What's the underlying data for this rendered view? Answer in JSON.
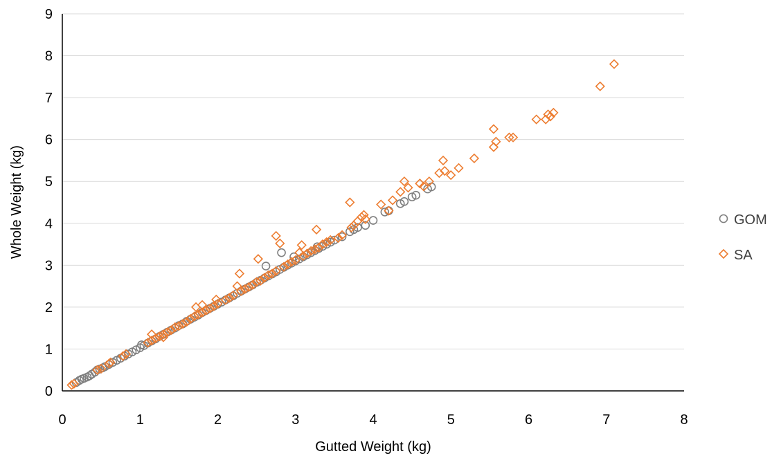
{
  "chart_data": {
    "type": "scatter",
    "title": "",
    "xlabel": "Gutted Weight (kg)",
    "ylabel": "Whole Weight (kg)",
    "xlim": [
      0,
      8
    ],
    "ylim": [
      0,
      9
    ],
    "xticks": [
      "0",
      "1",
      "2",
      "3",
      "4",
      "5",
      "6",
      "7",
      "8"
    ],
    "yticks": [
      "0",
      "1",
      "2",
      "3",
      "4",
      "5",
      "6",
      "7",
      "8",
      "9"
    ],
    "grid": "horizontal",
    "legend": "right",
    "series": [
      {
        "name": "GOM",
        "marker": "circle",
        "color": "#7f7f7f",
        "points": [
          [
            0.18,
            0.2
          ],
          [
            0.22,
            0.25
          ],
          [
            0.25,
            0.28
          ],
          [
            0.28,
            0.3
          ],
          [
            0.32,
            0.33
          ],
          [
            0.35,
            0.36
          ],
          [
            0.38,
            0.4
          ],
          [
            0.42,
            0.45
          ],
          [
            0.45,
            0.5
          ],
          [
            0.48,
            0.52
          ],
          [
            0.52,
            0.55
          ],
          [
            0.55,
            0.58
          ],
          [
            0.6,
            0.63
          ],
          [
            0.65,
            0.68
          ],
          [
            0.7,
            0.73
          ],
          [
            0.75,
            0.78
          ],
          [
            0.8,
            0.83
          ],
          [
            0.85,
            0.88
          ],
          [
            0.9,
            0.93
          ],
          [
            0.95,
            0.98
          ],
          [
            1.0,
            1.03
          ],
          [
            1.02,
            1.1
          ],
          [
            1.05,
            1.08
          ],
          [
            1.1,
            1.14
          ],
          [
            1.15,
            1.19
          ],
          [
            1.2,
            1.24
          ],
          [
            1.25,
            1.3
          ],
          [
            1.3,
            1.35
          ],
          [
            1.35,
            1.4
          ],
          [
            1.4,
            1.45
          ],
          [
            1.45,
            1.5
          ],
          [
            1.5,
            1.56
          ],
          [
            1.55,
            1.6
          ],
          [
            1.6,
            1.66
          ],
          [
            1.65,
            1.71
          ],
          [
            1.7,
            1.76
          ],
          [
            1.75,
            1.81
          ],
          [
            1.8,
            1.87
          ],
          [
            1.85,
            1.92
          ],
          [
            1.9,
            1.97
          ],
          [
            1.95,
            2.02
          ],
          [
            2.0,
            2.07
          ],
          [
            2.05,
            2.12
          ],
          [
            2.1,
            2.17
          ],
          [
            2.15,
            2.22
          ],
          [
            2.2,
            2.27
          ],
          [
            2.25,
            2.33
          ],
          [
            2.3,
            2.38
          ],
          [
            2.35,
            2.43
          ],
          [
            2.4,
            2.48
          ],
          [
            2.45,
            2.53
          ],
          [
            2.5,
            2.59
          ],
          [
            2.55,
            2.64
          ],
          [
            2.6,
            2.69
          ],
          [
            2.65,
            2.74
          ],
          [
            2.7,
            2.79
          ],
          [
            2.75,
            2.84
          ],
          [
            2.8,
            2.9
          ],
          [
            2.85,
            2.95
          ],
          [
            2.9,
            3.0
          ],
          [
            2.95,
            3.05
          ],
          [
            3.0,
            3.1
          ],
          [
            3.05,
            3.15
          ],
          [
            3.1,
            3.2
          ],
          [
            3.15,
            3.25
          ],
          [
            3.2,
            3.3
          ],
          [
            3.25,
            3.35
          ],
          [
            3.3,
            3.4
          ],
          [
            3.35,
            3.45
          ],
          [
            3.4,
            3.5
          ],
          [
            3.45,
            3.55
          ],
          [
            3.5,
            3.6
          ],
          [
            3.6,
            3.68
          ],
          [
            3.7,
            3.8
          ],
          [
            3.75,
            3.85
          ],
          [
            3.8,
            3.9
          ],
          [
            3.9,
            3.95
          ],
          [
            4.0,
            4.07
          ],
          [
            4.15,
            4.27
          ],
          [
            4.2,
            4.3
          ],
          [
            4.35,
            4.47
          ],
          [
            4.4,
            4.52
          ],
          [
            4.5,
            4.63
          ],
          [
            4.55,
            4.67
          ],
          [
            4.7,
            4.82
          ],
          [
            4.75,
            4.87
          ],
          [
            2.82,
            3.3
          ],
          [
            2.62,
            2.98
          ],
          [
            2.98,
            3.2
          ],
          [
            3.28,
            3.44
          ]
        ]
      },
      {
        "name": "SA",
        "marker": "diamond",
        "color": "#ed7d31",
        "points": [
          [
            0.12,
            0.14
          ],
          [
            0.15,
            0.17
          ],
          [
            0.45,
            0.5
          ],
          [
            0.5,
            0.53
          ],
          [
            0.6,
            0.65
          ],
          [
            0.62,
            0.68
          ],
          [
            0.78,
            0.83
          ],
          [
            0.82,
            0.88
          ],
          [
            1.1,
            1.15
          ],
          [
            1.15,
            1.2
          ],
          [
            1.15,
            1.35
          ],
          [
            1.2,
            1.25
          ],
          [
            1.25,
            1.3
          ],
          [
            1.3,
            1.35
          ],
          [
            1.3,
            1.28
          ],
          [
            1.35,
            1.4
          ],
          [
            1.4,
            1.45
          ],
          [
            1.45,
            1.52
          ],
          [
            1.5,
            1.55
          ],
          [
            1.55,
            1.6
          ],
          [
            1.6,
            1.65
          ],
          [
            1.65,
            1.72
          ],
          [
            1.7,
            1.78
          ],
          [
            1.72,
            2.0
          ],
          [
            1.75,
            1.82
          ],
          [
            1.8,
            1.87
          ],
          [
            1.8,
            2.05
          ],
          [
            1.85,
            1.92
          ],
          [
            1.9,
            1.97
          ],
          [
            1.95,
            2.02
          ],
          [
            1.98,
            2.18
          ],
          [
            2.0,
            2.08
          ],
          [
            2.1,
            2.17
          ],
          [
            2.15,
            2.22
          ],
          [
            2.2,
            2.28
          ],
          [
            2.25,
            2.5
          ],
          [
            2.28,
            2.8
          ],
          [
            2.3,
            2.38
          ],
          [
            2.35,
            2.43
          ],
          [
            2.4,
            2.48
          ],
          [
            2.45,
            2.53
          ],
          [
            2.5,
            2.6
          ],
          [
            2.52,
            3.15
          ],
          [
            2.55,
            2.63
          ],
          [
            2.6,
            2.7
          ],
          [
            2.65,
            2.76
          ],
          [
            2.7,
            2.8
          ],
          [
            2.75,
            2.86
          ],
          [
            2.75,
            3.7
          ],
          [
            2.8,
            3.52
          ],
          [
            2.85,
            2.96
          ],
          [
            2.9,
            3.02
          ],
          [
            2.95,
            3.08
          ],
          [
            3.0,
            3.12
          ],
          [
            3.05,
            3.3
          ],
          [
            3.08,
            3.48
          ],
          [
            3.1,
            3.22
          ],
          [
            3.15,
            3.28
          ],
          [
            3.2,
            3.34
          ],
          [
            3.25,
            3.38
          ],
          [
            3.27,
            3.85
          ],
          [
            3.3,
            3.42
          ],
          [
            3.35,
            3.5
          ],
          [
            3.4,
            3.55
          ],
          [
            3.45,
            3.6
          ],
          [
            3.55,
            3.65
          ],
          [
            3.6,
            3.72
          ],
          [
            3.7,
            4.5
          ],
          [
            3.72,
            3.9
          ],
          [
            3.75,
            3.95
          ],
          [
            3.8,
            4.05
          ],
          [
            3.85,
            4.15
          ],
          [
            3.88,
            4.2
          ],
          [
            3.9,
            4.1
          ],
          [
            4.1,
            4.45
          ],
          [
            4.2,
            4.3
          ],
          [
            4.25,
            4.55
          ],
          [
            4.35,
            4.75
          ],
          [
            4.4,
            5.0
          ],
          [
            4.45,
            4.85
          ],
          [
            4.6,
            4.95
          ],
          [
            4.65,
            4.88
          ],
          [
            4.72,
            5.0
          ],
          [
            4.85,
            5.2
          ],
          [
            4.9,
            5.5
          ],
          [
            4.92,
            5.25
          ],
          [
            5.0,
            5.15
          ],
          [
            5.1,
            5.32
          ],
          [
            5.3,
            5.55
          ],
          [
            5.55,
            5.82
          ],
          [
            5.55,
            6.25
          ],
          [
            5.58,
            5.95
          ],
          [
            5.75,
            6.05
          ],
          [
            5.8,
            6.05
          ],
          [
            6.1,
            6.48
          ],
          [
            6.22,
            6.48
          ],
          [
            6.25,
            6.6
          ],
          [
            6.28,
            6.55
          ],
          [
            6.32,
            6.64
          ],
          [
            6.92,
            7.27
          ],
          [
            7.1,
            7.8
          ]
        ]
      }
    ]
  }
}
